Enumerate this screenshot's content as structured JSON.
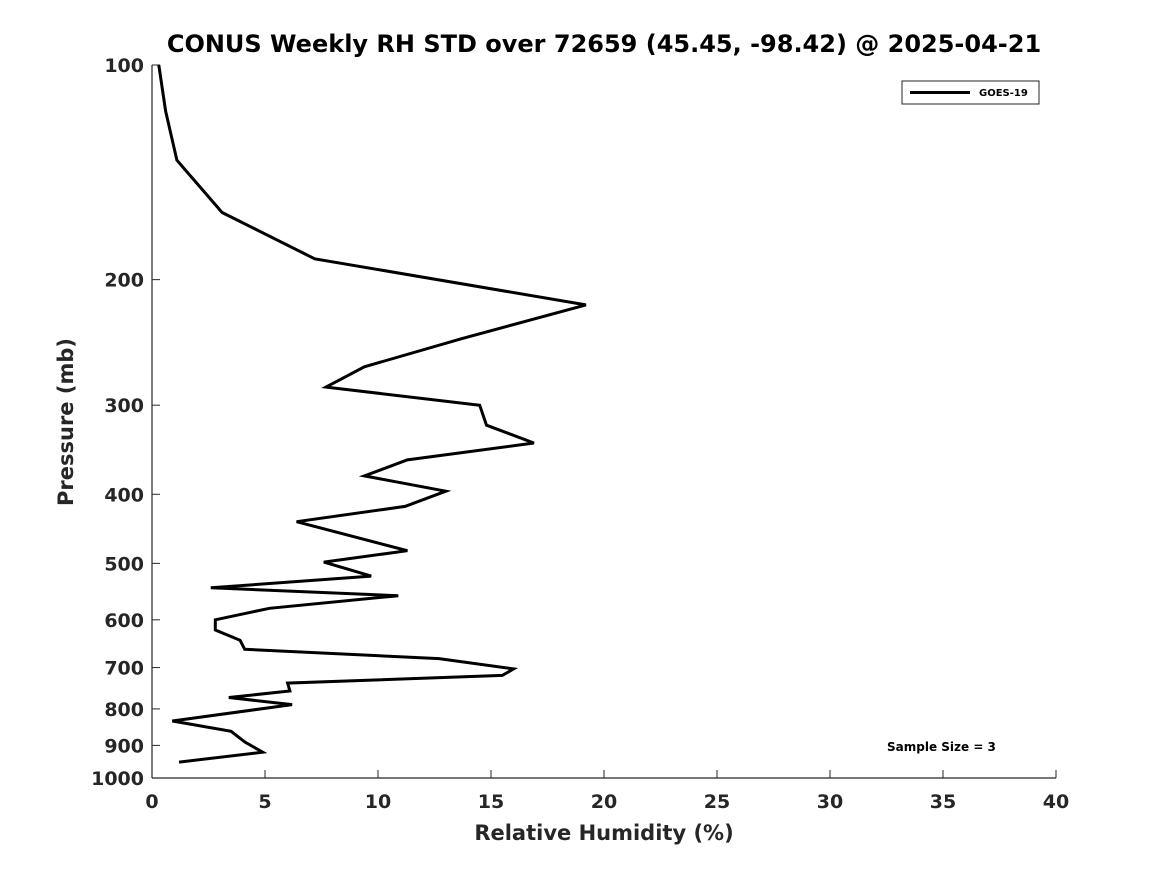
{
  "chart_data": {
    "type": "line",
    "title": "CONUS Weekly RH STD over 72659 (45.45, -98.42) @ 2025-04-21",
    "xlabel": "Relative Humidity (%)",
    "ylabel": "Pressure (mb)",
    "xlim": [
      0,
      40
    ],
    "ylim": [
      100,
      1000
    ],
    "y_scale": "log",
    "y_reversed": true,
    "x_ticks": [
      "0",
      "5",
      "10",
      "15",
      "20",
      "25",
      "30",
      "35",
      "40"
    ],
    "y_ticks": [
      "100",
      "200",
      "300",
      "400",
      "500",
      "600",
      "700",
      "800",
      "900",
      "1000"
    ],
    "grid": false,
    "legend_position": "top-right",
    "annotation": "Sample Size = 3",
    "series": [
      {
        "name": "GOES-19",
        "color": "#000000",
        "points": [
          [
            0.3,
            100
          ],
          [
            0.6,
            116
          ],
          [
            1.1,
            136
          ],
          [
            3.1,
            161
          ],
          [
            7.2,
            187
          ],
          [
            19.2,
            217
          ],
          [
            13.7,
            242
          ],
          [
            9.4,
            265
          ],
          [
            7.7,
            283
          ],
          [
            14.5,
            300
          ],
          [
            14.8,
            320
          ],
          [
            16.9,
            339
          ],
          [
            11.3,
            358
          ],
          [
            9.4,
            377
          ],
          [
            13.0,
            396
          ],
          [
            11.2,
            416
          ],
          [
            6.4,
            437
          ],
          [
            11.3,
            480
          ],
          [
            7.6,
            498
          ],
          [
            9.7,
            521
          ],
          [
            2.6,
            541
          ],
          [
            10.9,
            555
          ],
          [
            5.2,
            578
          ],
          [
            2.8,
            600
          ],
          [
            2.8,
            620
          ],
          [
            3.9,
            641
          ],
          [
            4.1,
            660
          ],
          [
            12.7,
            680
          ],
          [
            16.0,
            703
          ],
          [
            15.5,
            718
          ],
          [
            6.0,
            736
          ],
          [
            6.1,
            755
          ],
          [
            3.4,
            771
          ],
          [
            6.2,
            789
          ],
          [
            0.9,
            832
          ],
          [
            3.5,
            860
          ],
          [
            4.1,
            890
          ],
          [
            4.9,
            920
          ],
          [
            1.2,
            950
          ]
        ]
      }
    ]
  }
}
